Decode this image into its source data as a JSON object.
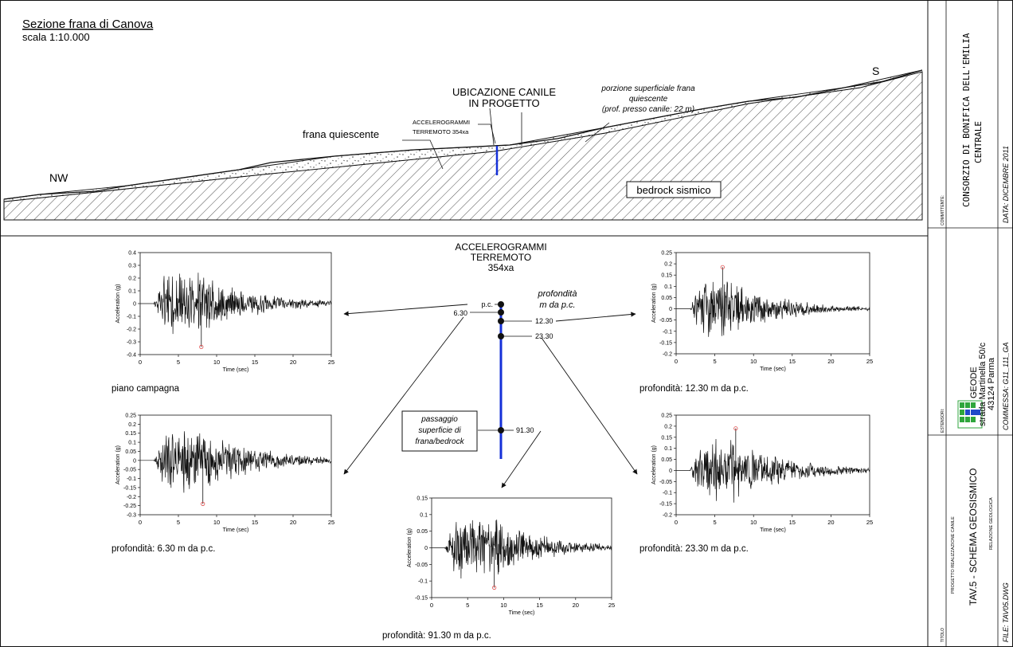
{
  "section": {
    "title": "Sezione frana di Canova",
    "scale": "scala 1:10.000",
    "label_nw": "NW",
    "label_s": "S",
    "label_frana": "frana quiescente",
    "label_ubicazione_1": "UBICAZIONE CANILE",
    "label_ubicazione_2": "IN PROGETTO",
    "label_accel_small_1": "ACCELEROGRAMMI",
    "label_accel_small_2": "TERREMOTO  354xa",
    "label_porzione_1": "porzione superficiale frana",
    "label_porzione_2": "quiescente",
    "label_porzione_3": "(prof. presso canile: 22 m)",
    "label_bedrock": "bedrock sismico"
  },
  "center": {
    "title_1": "ACCELEROGRAMMI",
    "title_2": "TERREMOTO",
    "title_3": "354xa",
    "depth_title_1": "profondità",
    "depth_title_2": "m da p.c.",
    "pc": "p.c.",
    "d630": "6.30",
    "d1230": "12.30",
    "d2330": "23.30",
    "d9130": "91.30",
    "passaggio_1": "passaggio",
    "passaggio_2": "superficie di",
    "passaggio_3": "frana/bedrock"
  },
  "chart_data": [
    {
      "type": "line",
      "xlabel": "Time (sec)",
      "ylabel": "Acceleration (g)",
      "xlim": [
        0,
        25
      ],
      "ylim": [
        -0.4,
        0.4
      ],
      "xticks": [
        "0",
        "5",
        "10",
        "15",
        "20",
        "25"
      ],
      "yticks": [
        "0.4",
        "0.3",
        "0.2",
        "0.1",
        "0",
        "-0.1",
        "-0.2",
        "-0.3",
        "-0.4"
      ],
      "peak": {
        "x": 8.0,
        "y": -0.34
      },
      "caption": "piano campagna"
    },
    {
      "type": "line",
      "xlabel": "Time (sec)",
      "ylabel": "Acceleration (g)",
      "xlim": [
        0,
        25
      ],
      "ylim": [
        -0.3,
        0.25
      ],
      "xticks": [
        "0",
        "5",
        "10",
        "15",
        "20",
        "25"
      ],
      "yticks": [
        "0.25",
        "0.2",
        "0.15",
        "0.1",
        "0.05",
        "0",
        "-0.05",
        "-0.1",
        "-0.15",
        "-0.2",
        "-0.25",
        "-0.3"
      ],
      "peak": {
        "x": 8.2,
        "y": -0.24
      },
      "caption": "profondità: 6.30 m da p.c."
    },
    {
      "type": "line",
      "xlabel": "Time (sec)",
      "ylabel": "Acceleration (g)",
      "xlim": [
        0,
        25
      ],
      "ylim": [
        -0.2,
        0.25
      ],
      "xticks": [
        "0",
        "5",
        "10",
        "15",
        "20",
        "25"
      ],
      "yticks": [
        "0.25",
        "0.2",
        "0.15",
        "0.1",
        "0.05",
        "0",
        "-0.05",
        "-0.1",
        "-0.15",
        "-0.2"
      ],
      "peak": {
        "x": 6.0,
        "y": 0.185
      },
      "caption": "profondità: 12.30 m da p.c."
    },
    {
      "type": "line",
      "xlabel": "Time (sec)",
      "ylabel": "Acceleration (g)",
      "xlim": [
        0,
        25
      ],
      "ylim": [
        -0.2,
        0.25
      ],
      "xticks": [
        "0",
        "5",
        "10",
        "15",
        "20",
        "25"
      ],
      "yticks": [
        "0.25",
        "0.2",
        "0.15",
        "0.1",
        "0.05",
        "0",
        "-0.05",
        "-0.1",
        "-0.15",
        "-0.2"
      ],
      "peak": {
        "x": 7.7,
        "y": 0.19
      },
      "caption": "profondità: 23.30 m da p.c."
    },
    {
      "type": "line",
      "xlabel": "Time (sec)",
      "ylabel": "Acceleration (g)",
      "xlim": [
        0,
        25
      ],
      "ylim": [
        -0.15,
        0.15
      ],
      "xticks": [
        "0",
        "5",
        "10",
        "15",
        "20",
        "25"
      ],
      "yticks": [
        "0.15",
        "0.1",
        "0.05",
        "0",
        "-0.05",
        "-0.1",
        "-0.15"
      ],
      "peak": {
        "x": 8.7,
        "y": -0.12
      },
      "caption": "profondità: 91.30 m da p.c."
    }
  ],
  "title_block": {
    "committente_label": "COMMITTENTE:",
    "consorzio_1": "CONSORZIO DI BONIFICA DELL'EMILIA",
    "consorzio_2": "CENTRALE",
    "data": "DATA: DICEMBRE 2011",
    "estensori_label": "ESTENSORI:",
    "geode_1": "GEODE",
    "geode_2": "strada Martinella 50/c",
    "geode_3": "43124 Parma",
    "commessa": "COMMESSA: G11_111_GA",
    "titolo_label": "TITOLO",
    "progetto": "PROGETTO REALIZZAZIONE CANILE",
    "tav": "TAV.5 - SCHEMA GEOSISMICO",
    "relazione": "RELAZIONE GEOLOGICA",
    "file": "FILE: TAV05.DWG"
  },
  "colors": {
    "borehole": "#1530d8",
    "logo_green": "#2fa63c",
    "logo_blue": "#1f49c9",
    "peak": "#e05050"
  }
}
